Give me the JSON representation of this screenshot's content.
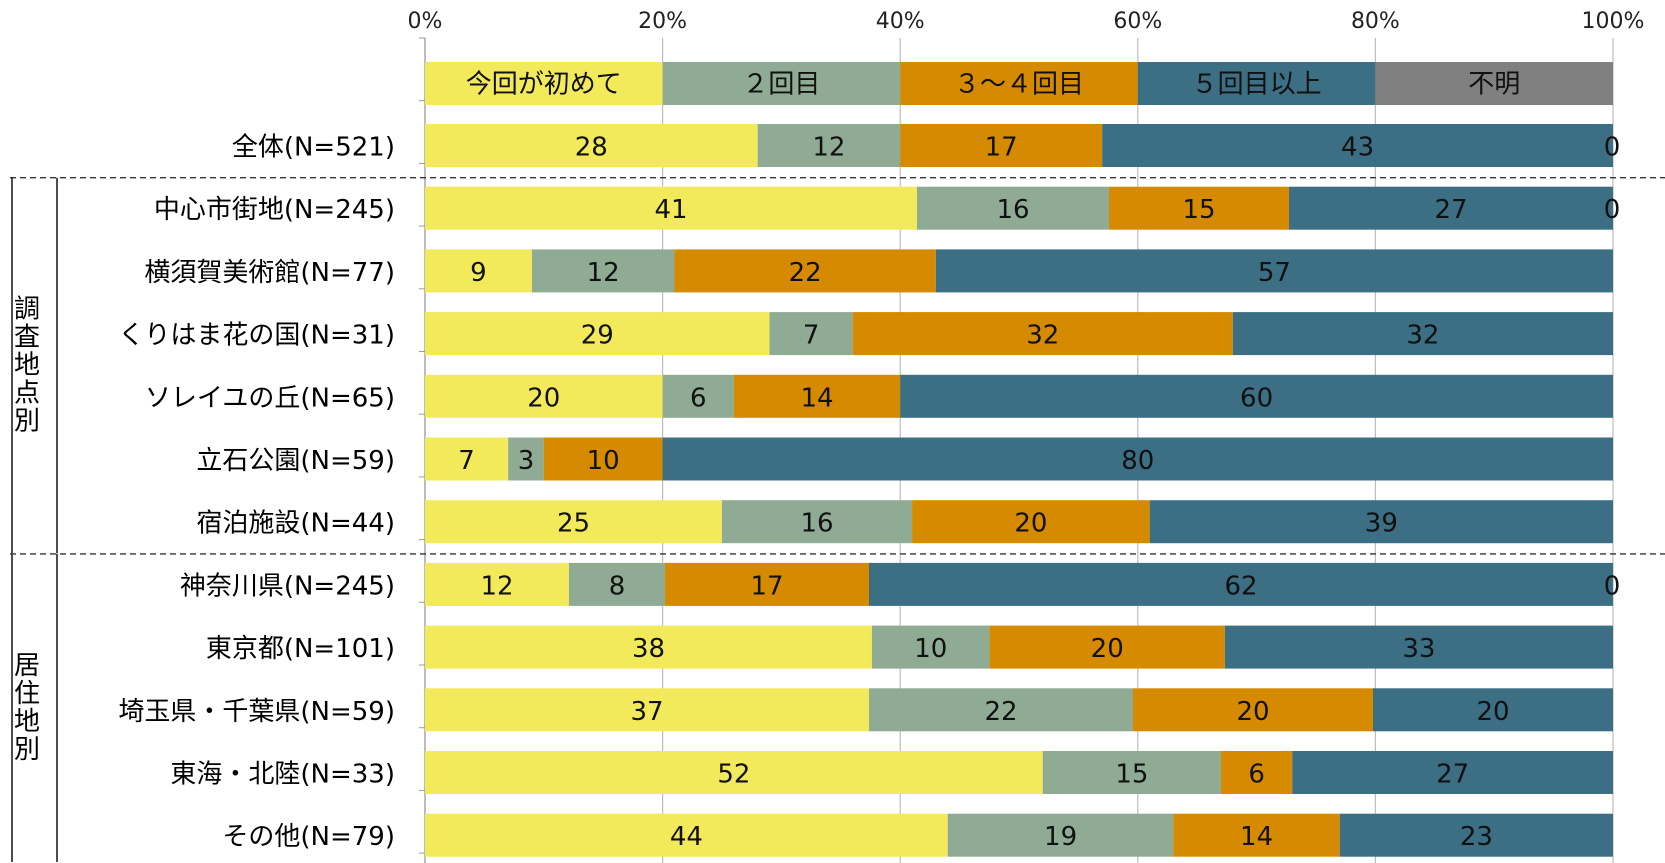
{
  "chart_data": {
    "type": "bar",
    "orientation": "horizontal",
    "stacked": "percent",
    "title": "",
    "xlabel": "",
    "ylabel": "",
    "xlim": [
      0,
      100
    ],
    "x_ticks": [
      "0%",
      "20%",
      "40%",
      "60%",
      "80%",
      "100%"
    ],
    "grid": true,
    "legend_position": "top",
    "series": [
      {
        "name": "今回が初めて",
        "color": "#f2ea5a"
      },
      {
        "name": "２回目",
        "color": "#8fab94"
      },
      {
        "name": "３～４回目",
        "color": "#d68a00"
      },
      {
        "name": "５回目以上",
        "color": "#3c6e84"
      },
      {
        "name": "不明",
        "color": "#808080"
      }
    ],
    "groups": [
      {
        "label": "調査地点別",
        "chars": [
          "調",
          "査",
          "地",
          "点",
          "別"
        ]
      },
      {
        "label": "居住地別",
        "chars": [
          "居",
          "住",
          "地",
          "別"
        ]
      }
    ],
    "rows": [
      {
        "category": "全体(N=521)",
        "group": null,
        "values": [
          28,
          12,
          17,
          43,
          0
        ]
      },
      {
        "category": "中心市街地(N=245)",
        "group": 0,
        "values": [
          41,
          16,
          15,
          27,
          0
        ]
      },
      {
        "category": "横須賀美術館(N=77)",
        "group": 0,
        "values": [
          9,
          12,
          22,
          57
        ]
      },
      {
        "category": "くりはま花の国(N=31)",
        "group": 0,
        "values": [
          29,
          7,
          32,
          32
        ]
      },
      {
        "category": "ソレイユの丘(N=65)",
        "group": 0,
        "values": [
          20,
          6,
          14,
          60
        ]
      },
      {
        "category": "立石公園(N=59)",
        "group": 0,
        "values": [
          7,
          3,
          10,
          80
        ]
      },
      {
        "category": "宿泊施設(N=44)",
        "group": 0,
        "values": [
          25,
          16,
          20,
          39
        ]
      },
      {
        "category": "神奈川県(N=245)",
        "group": 1,
        "values": [
          12,
          8,
          17,
          62,
          0
        ]
      },
      {
        "category": "東京都(N=101)",
        "group": 1,
        "values": [
          38,
          10,
          20,
          33
        ]
      },
      {
        "category": "埼玉県・千葉県(N=59)",
        "group": 1,
        "values": [
          37,
          22,
          20,
          20
        ]
      },
      {
        "category": "東海・北陸(N=33)",
        "group": 1,
        "values": [
          52,
          15,
          6,
          27
        ]
      },
      {
        "category": "その他(N=79)",
        "group": 1,
        "values": [
          44,
          19,
          14,
          23
        ]
      }
    ]
  }
}
